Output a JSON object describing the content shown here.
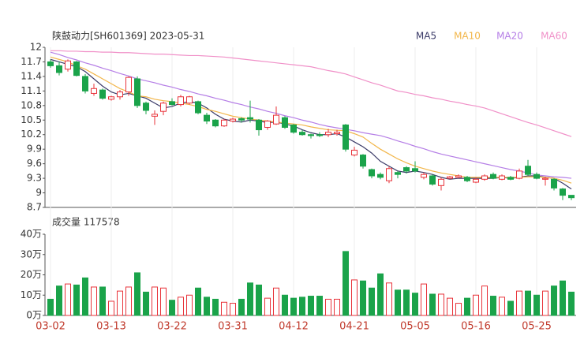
{
  "chart_data": [
    {
      "type": "candlestick",
      "title": "陕鼓动力[SH601369] 2023-05-31",
      "categories": [
        "03-02",
        null,
        null,
        null,
        null,
        null,
        null,
        "03-13",
        null,
        null,
        null,
        null,
        null,
        null,
        "03-22",
        null,
        null,
        null,
        null,
        null,
        null,
        "03-31",
        null,
        null,
        null,
        null,
        null,
        null,
        "04-12",
        null,
        null,
        null,
        null,
        null,
        null,
        "04-21",
        null,
        null,
        null,
        null,
        null,
        null,
        "05-05",
        null,
        null,
        null,
        null,
        null,
        null,
        "05-16",
        null,
        null,
        null,
        null,
        null,
        null,
        "05-25",
        null,
        null,
        null,
        null
      ],
      "open": [
        11.7,
        11.62,
        11.55,
        11.7,
        11.4,
        11.05,
        11.12,
        10.93,
        10.98,
        11.08,
        11.35,
        10.85,
        10.58,
        10.68,
        10.88,
        10.82,
        10.85,
        10.88,
        10.6,
        10.5,
        10.38,
        10.48,
        10.53,
        10.55,
        10.5,
        10.35,
        10.42,
        10.55,
        10.4,
        10.25,
        10.2,
        10.2,
        10.2,
        10.22,
        10.4,
        9.78,
        9.78,
        9.48,
        9.38,
        9.25,
        9.42,
        9.52,
        9.5,
        9.32,
        9.35,
        9.15,
        9.3,
        9.32,
        9.32,
        9.22,
        9.28,
        9.38,
        9.28,
        9.32,
        9.3,
        9.55,
        9.38,
        9.28,
        9.28,
        9.08,
        8.95
      ],
      "high": [
        11.75,
        11.7,
        11.75,
        11.72,
        11.45,
        11.25,
        11.15,
        11.0,
        11.12,
        11.4,
        11.4,
        10.88,
        10.7,
        10.88,
        10.95,
        11.02,
        11.0,
        10.9,
        10.65,
        10.52,
        10.52,
        10.55,
        10.56,
        10.9,
        10.52,
        10.5,
        10.78,
        10.58,
        10.42,
        10.3,
        10.22,
        10.25,
        10.32,
        10.3,
        10.42,
        9.95,
        9.8,
        9.5,
        9.42,
        9.55,
        9.45,
        9.55,
        9.65,
        9.42,
        9.38,
        9.32,
        9.35,
        9.38,
        9.35,
        9.32,
        9.38,
        9.42,
        9.38,
        9.35,
        9.5,
        9.68,
        9.42,
        9.33,
        9.3,
        9.1,
        8.95
      ],
      "low": [
        11.58,
        11.42,
        11.5,
        11.4,
        11.05,
        11.0,
        10.92,
        10.9,
        10.92,
        11.0,
        10.75,
        10.62,
        10.4,
        10.6,
        10.8,
        10.78,
        10.82,
        10.62,
        10.42,
        10.35,
        10.36,
        10.45,
        10.45,
        10.45,
        10.18,
        10.3,
        10.4,
        10.32,
        10.22,
        10.18,
        10.12,
        10.15,
        10.15,
        10.18,
        9.85,
        9.75,
        9.5,
        9.3,
        9.28,
        9.2,
        9.3,
        9.4,
        9.42,
        9.28,
        9.15,
        9.05,
        9.28,
        9.3,
        9.22,
        9.2,
        9.25,
        9.28,
        9.26,
        9.26,
        9.28,
        9.35,
        9.28,
        9.15,
        9.05,
        8.85,
        8.85
      ],
      "close": [
        11.62,
        11.48,
        11.72,
        11.42,
        11.1,
        11.15,
        10.95,
        10.98,
        11.08,
        11.38,
        10.8,
        10.7,
        10.62,
        10.85,
        10.82,
        10.98,
        10.98,
        10.65,
        10.48,
        10.38,
        10.5,
        10.52,
        10.5,
        10.52,
        10.3,
        10.48,
        10.6,
        10.35,
        10.25,
        10.2,
        10.18,
        10.18,
        10.25,
        10.25,
        9.9,
        9.88,
        9.55,
        9.35,
        9.32,
        9.5,
        9.38,
        9.45,
        9.45,
        9.38,
        9.18,
        9.28,
        9.33,
        9.35,
        9.25,
        9.28,
        9.35,
        9.3,
        9.35,
        9.28,
        9.45,
        9.38,
        9.3,
        9.3,
        9.1,
        8.95,
        8.9
      ],
      "up_color": "#e8333a",
      "down_color": "#1aa34a",
      "series": [
        {
          "name": "MA5",
          "color": "#3b3b68",
          "values": [
            11.75,
            11.7,
            11.65,
            11.6,
            11.5,
            11.35,
            11.2,
            11.08,
            11.02,
            11.05,
            11.0,
            10.95,
            10.85,
            10.75,
            10.78,
            10.85,
            10.88,
            10.85,
            10.75,
            10.62,
            10.52,
            10.48,
            10.46,
            10.5,
            10.48,
            10.45,
            10.46,
            10.42,
            10.38,
            10.3,
            10.24,
            10.2,
            10.2,
            10.22,
            10.15,
            10.05,
            9.95,
            9.82,
            9.65,
            9.55,
            9.45,
            9.42,
            9.45,
            9.42,
            9.38,
            9.32,
            9.28,
            9.3,
            9.3,
            9.3,
            9.3,
            9.3,
            9.32,
            9.3,
            9.32,
            9.35,
            9.35,
            9.32,
            9.3,
            9.2,
            9.08
          ]
        },
        {
          "name": "MA10",
          "color": "#f2b64a",
          "values": [
            11.8,
            11.75,
            11.7,
            11.62,
            11.55,
            11.45,
            11.35,
            11.25,
            11.15,
            11.08,
            11.0,
            10.98,
            10.93,
            10.9,
            10.88,
            10.85,
            10.82,
            10.78,
            10.72,
            10.68,
            10.63,
            10.58,
            10.55,
            10.52,
            10.5,
            10.48,
            10.46,
            10.44,
            10.42,
            10.4,
            10.36,
            10.33,
            10.3,
            10.29,
            10.28,
            10.22,
            10.15,
            10.02,
            9.9,
            9.8,
            9.7,
            9.62,
            9.55,
            9.5,
            9.45,
            9.41,
            9.38,
            9.35,
            9.32,
            9.32,
            9.32,
            9.32,
            9.32,
            9.32,
            9.32,
            9.33,
            9.33,
            9.32,
            9.3,
            9.26,
            9.2
          ]
        },
        {
          "name": "MA20",
          "color": "#b57ee6",
          "values": [
            11.9,
            11.85,
            11.79,
            11.74,
            11.68,
            11.63,
            11.57,
            11.52,
            11.46,
            11.41,
            11.35,
            11.31,
            11.27,
            11.22,
            11.18,
            11.13,
            11.09,
            11.04,
            11.0,
            10.95,
            10.91,
            10.86,
            10.82,
            10.77,
            10.73,
            10.68,
            10.64,
            10.59,
            10.55,
            10.5,
            10.46,
            10.41,
            10.37,
            10.34,
            10.31,
            10.28,
            10.24,
            10.21,
            10.18,
            10.13,
            10.07,
            10.02,
            9.96,
            9.91,
            9.85,
            9.8,
            9.76,
            9.72,
            9.68,
            9.64,
            9.6,
            9.56,
            9.52,
            9.48,
            9.45,
            9.41,
            9.37,
            9.35,
            9.33,
            9.32,
            9.3
          ]
        },
        {
          "name": "MA60",
          "color": "#f090c8",
          "values": [
            11.93,
            11.93,
            11.92,
            11.92,
            11.91,
            11.91,
            11.9,
            11.9,
            11.89,
            11.89,
            11.88,
            11.87,
            11.86,
            11.86,
            11.85,
            11.84,
            11.83,
            11.83,
            11.82,
            11.81,
            11.8,
            11.78,
            11.76,
            11.74,
            11.72,
            11.7,
            11.68,
            11.66,
            11.64,
            11.62,
            11.6,
            11.56,
            11.52,
            11.49,
            11.45,
            11.39,
            11.33,
            11.27,
            11.22,
            11.16,
            11.1,
            11.07,
            11.03,
            11.0,
            10.96,
            10.93,
            10.89,
            10.86,
            10.82,
            10.79,
            10.75,
            10.69,
            10.63,
            10.57,
            10.51,
            10.45,
            10.4,
            10.34,
            10.28,
            10.22,
            10.16
          ]
        }
      ],
      "ylim": [
        8.7,
        12
      ],
      "yticks": [
        12,
        11.7,
        11.4,
        11.1,
        10.8,
        10.5,
        10.2,
        9.9,
        9.6,
        9.3,
        9,
        8.7
      ]
    },
    {
      "type": "bar",
      "title": "成交量 117578",
      "values": [
        8,
        14.5,
        15.5,
        15,
        18.5,
        14,
        14,
        7,
        12,
        14,
        21,
        11.5,
        14,
        13.5,
        7.5,
        9,
        10,
        13.5,
        9,
        8,
        6.5,
        6,
        8,
        16,
        15,
        8.5,
        13.5,
        10,
        8.5,
        9,
        9.5,
        9.5,
        8,
        8,
        31.5,
        17.5,
        17,
        13.5,
        20.5,
        16,
        12.5,
        12.5,
        11,
        15.5,
        10.5,
        10.5,
        8.5,
        6,
        8.5,
        10,
        14.5,
        9.5,
        9,
        7,
        12,
        12,
        10,
        12,
        14.5,
        17,
        11.5
      ],
      "ylim": [
        0,
        40
      ],
      "yticks": [
        {
          "value": 40,
          "label": "40万"
        },
        {
          "value": 30,
          "label": "30万"
        },
        {
          "value": 20,
          "label": "20万"
        },
        {
          "value": 10,
          "label": "10万"
        },
        {
          "value": 0,
          "label": "0万"
        }
      ]
    }
  ]
}
